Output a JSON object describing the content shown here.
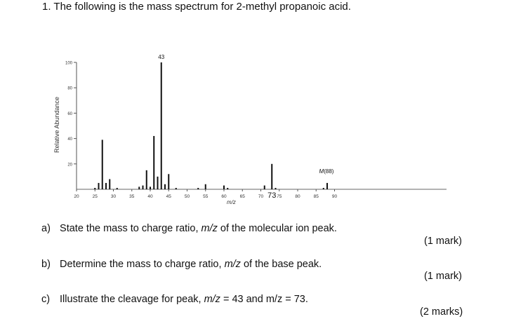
{
  "question": {
    "number": "1.",
    "title": "The following is the mass spectrum for 2-methyl propanoic acid."
  },
  "chart_data": {
    "type": "bar",
    "title": "Mass spectrum of 2-methyl propanoic acid",
    "xlabel": "m/z",
    "ylabel": "Relative Abundance",
    "xlim": [
      20,
      90
    ],
    "ylim": [
      0,
      100
    ],
    "x_ticks": [
      20,
      25,
      30,
      35,
      40,
      45,
      50,
      55,
      60,
      65,
      70,
      75,
      80,
      85,
      90
    ],
    "y_ticks": [
      20,
      40,
      60,
      80,
      100
    ],
    "grid": false,
    "x": [
      25,
      26,
      27,
      28,
      29,
      31,
      37,
      38,
      39,
      40,
      41,
      42,
      43,
      44,
      45,
      47,
      53,
      55,
      60,
      61,
      71,
      73,
      74,
      87,
      88
    ],
    "values": [
      1,
      5,
      39,
      5,
      8,
      1,
      2,
      3,
      15,
      2,
      42,
      10,
      100,
      4,
      12,
      1,
      1,
      4,
      3,
      1,
      3,
      20,
      1,
      1,
      5
    ],
    "annotations": [
      {
        "text": "43",
        "x": 43,
        "y": 100
      },
      {
        "text": "73",
        "x": 73,
        "y": 0
      },
      {
        "text": "M(88)",
        "x": 88,
        "y": 5
      }
    ]
  },
  "questions": [
    {
      "label": "a)",
      "pre": "State the mass to charge ratio, ",
      "italic": "m/z",
      "post": " of the molecular ion peak.",
      "marks": "(1 mark)"
    },
    {
      "label": "b)",
      "pre": "Determine the mass to charge ratio, ",
      "italic": "m/z",
      "post": " of the base peak.",
      "marks": "(1 mark)"
    },
    {
      "label": "c)",
      "pre": "Illustrate the cleavage for peak, ",
      "italic": "m/z",
      "post": " = 43 and m/z = 73.",
      "marks": "(2 marks)"
    }
  ]
}
